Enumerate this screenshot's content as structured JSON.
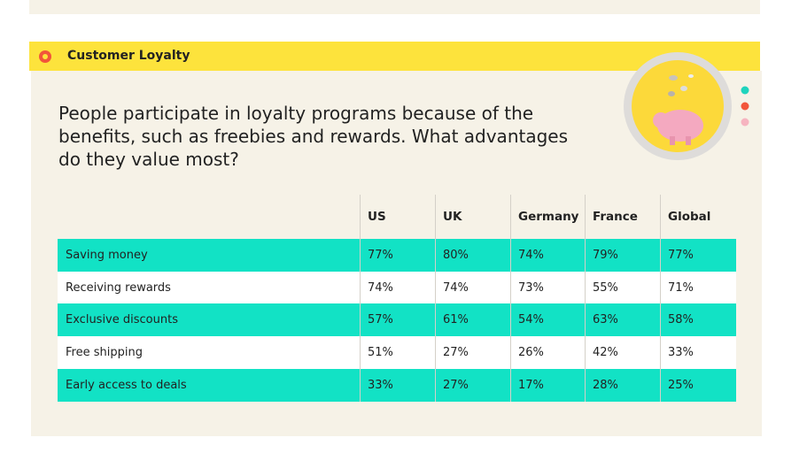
{
  "header": {
    "title": "Customer Loyalty"
  },
  "question": "People participate in loyalty programs because of the benefits, such as freebies and rewards. What advantages do they value most?",
  "table": {
    "columns": [
      "US",
      "UK",
      "Germany",
      "France",
      "Global"
    ],
    "rows": [
      [
        "Saving money",
        "77%",
        "80%",
        "74%",
        "79%",
        "77%"
      ],
      [
        "Receiving rewards",
        "74%",
        "74%",
        "73%",
        "55%",
        "71%"
      ],
      [
        "Exclusive discounts",
        "57%",
        "61%",
        "54%",
        "63%",
        "58%"
      ],
      [
        "Free shipping",
        "51%",
        "27%",
        "26%",
        "42%",
        "33%"
      ],
      [
        "Early access to deals",
        "33%",
        "27%",
        "17%",
        "28%",
        "25%"
      ]
    ]
  }
}
